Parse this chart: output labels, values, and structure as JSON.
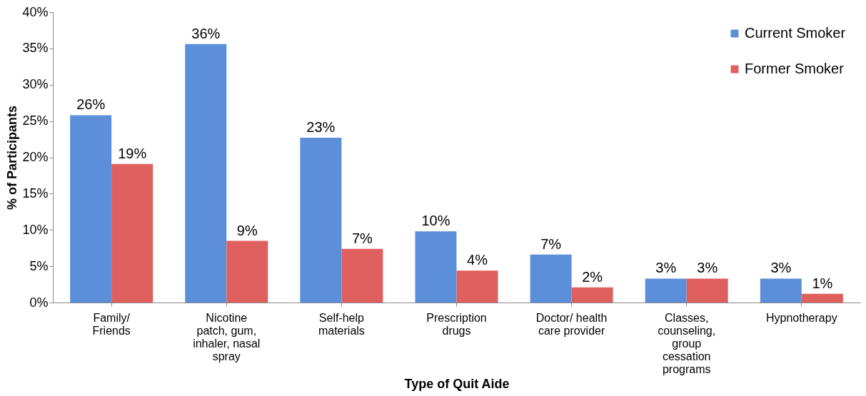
{
  "chart_data": {
    "type": "bar",
    "xlabel": "Type of Quit Aide",
    "ylabel": "% of Participants",
    "categories": [
      "Family/ Friends",
      "Nicotine patch, gum, inhaler, nasal spray",
      "Self-help materials",
      "Prescription drugs",
      "Doctor/ health care provider",
      "Classes, counseling, group cessation programs",
      "Hypnotherapy"
    ],
    "series": [
      {
        "name": "Current Smoker",
        "color": "#5b8fd9",
        "values": [
          25.8,
          35.6,
          22.7,
          9.8,
          6.6,
          3.3,
          3.3
        ],
        "value_labels": [
          "26%",
          "36%",
          "23%",
          "10%",
          "7%",
          "3%",
          "3%"
        ]
      },
      {
        "name": "Former Smoker",
        "color": "#e0605f",
        "values": [
          19.1,
          8.5,
          7.4,
          4.4,
          2.1,
          3.3,
          1.2
        ],
        "value_labels": [
          "19%",
          "9%",
          "7%",
          "4%",
          "2%",
          "3%",
          "1%"
        ]
      }
    ],
    "ylim": [
      0,
      40
    ],
    "yticks": [
      {
        "value": 0,
        "label": "0%"
      },
      {
        "value": 5,
        "label": "5%"
      },
      {
        "value": 10,
        "label": "10%"
      },
      {
        "value": 15,
        "label": "15%"
      },
      {
        "value": 20,
        "label": "20%"
      },
      {
        "value": 25,
        "label": "25%"
      },
      {
        "value": 30,
        "label": "30%"
      },
      {
        "value": 35,
        "label": "35%"
      },
      {
        "value": 40,
        "label": "40%"
      }
    ],
    "grid": false,
    "legend": "top right"
  }
}
